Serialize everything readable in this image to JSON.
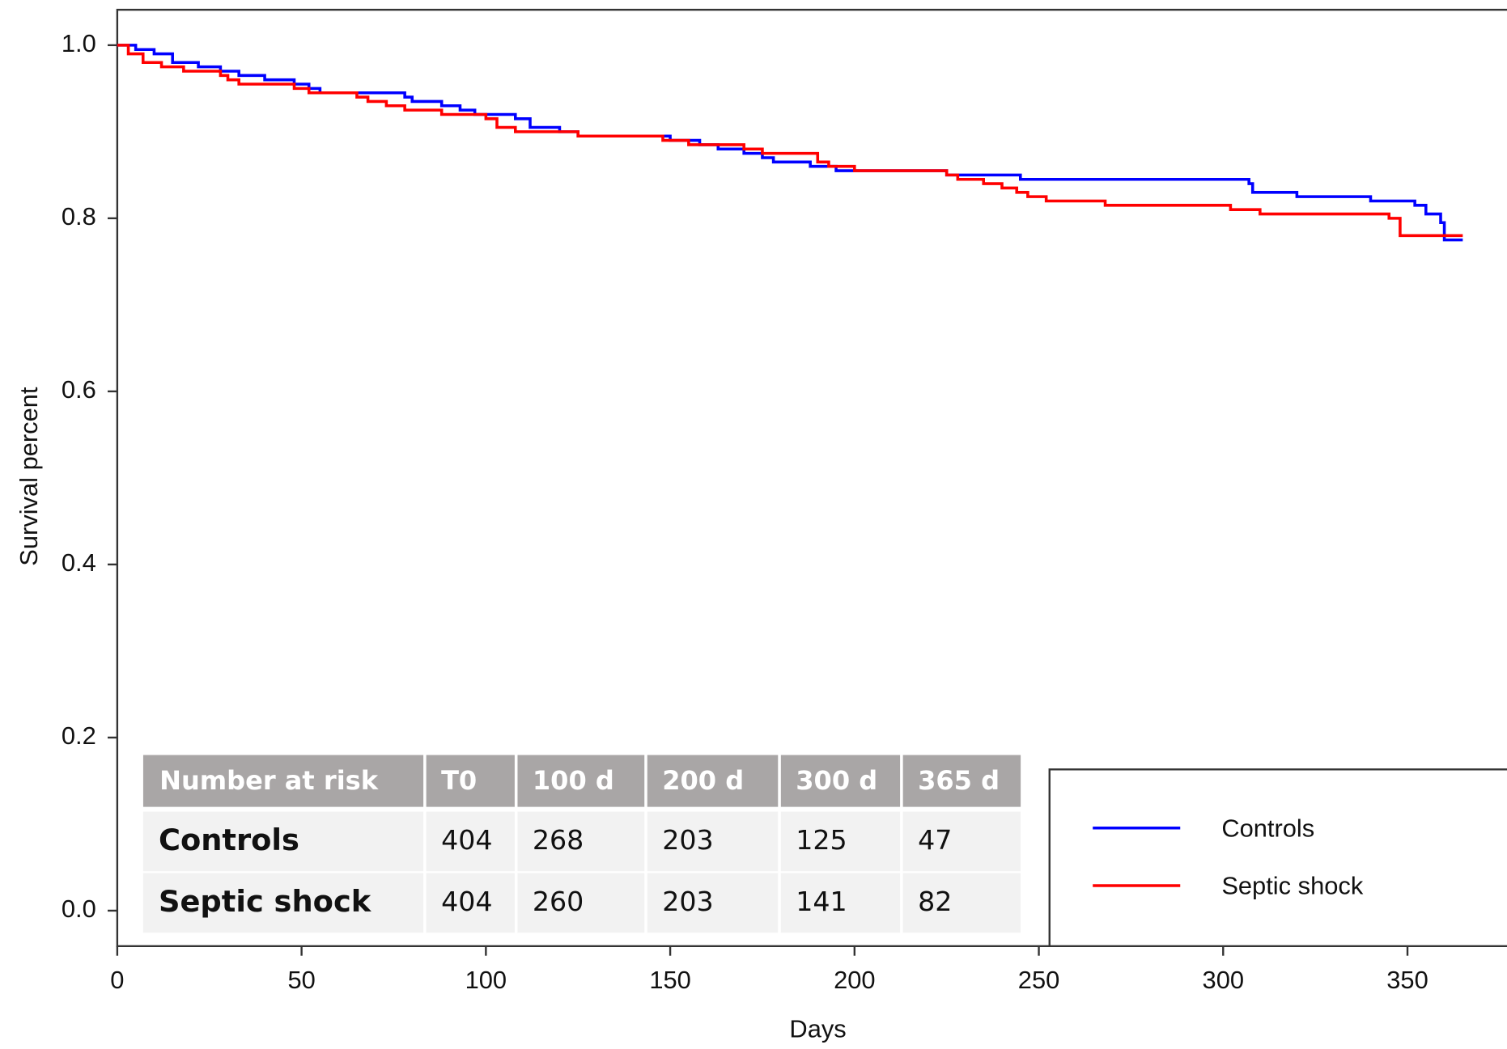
{
  "chart_data": {
    "type": "step",
    "x_label": "Days",
    "y_label": "Survival percent",
    "xlim": [
      0,
      377
    ],
    "ylim": [
      -0.041,
      1.041
    ],
    "xticks": [
      0,
      50,
      100,
      150,
      200,
      250,
      300,
      350
    ],
    "yticks": [
      {
        "value": 0,
        "label": "0.0"
      },
      {
        "value": 0.2,
        "label": "0.2"
      },
      {
        "value": 0.4,
        "label": "0.4"
      },
      {
        "value": 0.6,
        "label": "0.6"
      },
      {
        "value": 0.8,
        "label": "0.8"
      },
      {
        "value": 1,
        "label": "1.0"
      }
    ],
    "legend": "bottom-right",
    "series": [
      {
        "name": "Controls",
        "color": "#0000ff",
        "x": [
          0,
          5,
          10,
          15,
          22,
          28,
          33,
          40,
          48,
          52,
          55,
          78,
          80,
          88,
          93,
          97,
          108,
          112,
          120,
          125,
          150,
          158,
          163,
          170,
          175,
          178,
          188,
          195,
          225,
          245,
          307,
          308,
          320,
          340,
          352,
          355,
          359,
          360,
          365
        ],
        "values": [
          1.0,
          0.995,
          0.99,
          0.98,
          0.975,
          0.97,
          0.965,
          0.96,
          0.955,
          0.95,
          0.945,
          0.94,
          0.935,
          0.93,
          0.925,
          0.92,
          0.915,
          0.905,
          0.9,
          0.895,
          0.89,
          0.885,
          0.88,
          0.875,
          0.87,
          0.865,
          0.86,
          0.855,
          0.85,
          0.845,
          0.84,
          0.83,
          0.825,
          0.82,
          0.815,
          0.805,
          0.795,
          0.775,
          0.775
        ]
      },
      {
        "name": "Septic shock",
        "color": "#ff0000",
        "x": [
          0,
          3,
          7,
          12,
          18,
          28,
          30,
          33,
          48,
          52,
          65,
          68,
          73,
          78,
          88,
          100,
          103,
          108,
          125,
          148,
          155,
          170,
          175,
          190,
          193,
          200,
          225,
          228,
          235,
          240,
          244,
          247,
          252,
          268,
          302,
          310,
          345,
          348,
          365
        ],
        "values": [
          1.0,
          0.99,
          0.98,
          0.975,
          0.97,
          0.965,
          0.96,
          0.955,
          0.95,
          0.945,
          0.94,
          0.935,
          0.93,
          0.925,
          0.92,
          0.915,
          0.905,
          0.9,
          0.895,
          0.89,
          0.885,
          0.88,
          0.875,
          0.865,
          0.86,
          0.855,
          0.85,
          0.845,
          0.84,
          0.835,
          0.83,
          0.825,
          0.82,
          0.815,
          0.81,
          0.805,
          0.8,
          0.78,
          0.78
        ]
      }
    ],
    "risk_table": {
      "header": [
        "Number at risk",
        "T0",
        "100 d",
        "200 d",
        "300 d",
        "365 d"
      ],
      "rows": [
        [
          "Controls",
          "404",
          "268",
          "203",
          "125",
          "47"
        ],
        [
          "Septic shock",
          "404",
          "260",
          "203",
          "141",
          "82"
        ]
      ]
    }
  }
}
